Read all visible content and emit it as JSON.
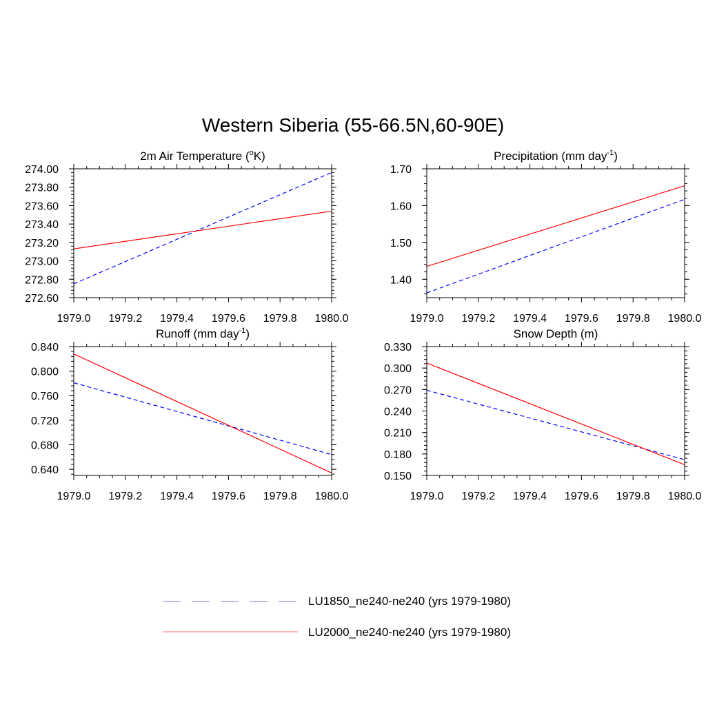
{
  "figure": {
    "title": "Western Siberia (55-66.5N,60-90E)"
  },
  "legend": {
    "placement": "bottom-center",
    "entries": [
      {
        "label": "LU1850_ne240-ne240 (yrs 1979-1980)",
        "color": "#0000ff",
        "style": "dashed"
      },
      {
        "label": "LU2000_ne240-ne240 (yrs 1979-1980)",
        "color": "#ff0000",
        "style": "solid"
      }
    ]
  },
  "chart_data": [
    {
      "type": "line",
      "title": "2m Air Temperature (°K)",
      "title_parts": {
        "base": "2m Air Temperature (",
        "sup": "o",
        "rest": "K)"
      },
      "xlabel": "",
      "ylabel": "",
      "xlim": [
        1979.0,
        1980.0
      ],
      "ylim": [
        272.6,
        274.0
      ],
      "xticks": [
        "1979.0",
        "1979.2",
        "1979.4",
        "1979.6",
        "1979.8",
        "1980.0"
      ],
      "yticks": [
        "272.60",
        "272.80",
        "273.00",
        "273.20",
        "273.40",
        "273.60",
        "273.80",
        "274.00"
      ],
      "series": [
        {
          "name": "LU1850_ne240-ne240 (yrs 1979-1980)",
          "x": [
            1979.0,
            1980.0
          ],
          "y": [
            272.75,
            273.96
          ],
          "color": "#0000ff",
          "style": "dashed"
        },
        {
          "name": "LU2000_ne240-ne240 (yrs 1979-1980)",
          "x": [
            1979.0,
            1980.0
          ],
          "y": [
            273.13,
            273.54
          ],
          "color": "#ff0000",
          "style": "solid"
        }
      ]
    },
    {
      "type": "line",
      "title": "Precipitation (mm day-1)",
      "title_parts": {
        "base": "Precipitation (mm day",
        "sup": "-1",
        "rest": ")"
      },
      "xlabel": "",
      "ylabel": "",
      "xlim": [
        1979.0,
        1980.0
      ],
      "ylim": [
        1.35,
        1.7
      ],
      "xticks": [
        "1979.0",
        "1979.2",
        "1979.4",
        "1979.6",
        "1979.8",
        "1980.0"
      ],
      "yticks": [
        "1.40",
        "1.50",
        "1.60",
        "1.70"
      ],
      "series": [
        {
          "name": "LU1850_ne240-ne240 (yrs 1979-1980)",
          "x": [
            1979.0,
            1980.0
          ],
          "y": [
            1.363,
            1.617
          ],
          "color": "#0000ff",
          "style": "dashed"
        },
        {
          "name": "LU2000_ne240-ne240 (yrs 1979-1980)",
          "x": [
            1979.0,
            1980.0
          ],
          "y": [
            1.435,
            1.654
          ],
          "color": "#ff0000",
          "style": "solid"
        }
      ]
    },
    {
      "type": "line",
      "title": "Runoff (mm day-1)",
      "title_parts": {
        "base": "Runoff (mm day",
        "sup": "-1",
        "rest": ")"
      },
      "xlabel": "",
      "ylabel": "",
      "xlim": [
        1979.0,
        1980.0
      ],
      "ylim": [
        0.63,
        0.84
      ],
      "xticks": [
        "1979.0",
        "1979.2",
        "1979.4",
        "1979.6",
        "1979.8",
        "1980.0"
      ],
      "yticks": [
        "0.640",
        "0.680",
        "0.720",
        "0.760",
        "0.800",
        "0.840"
      ],
      "series": [
        {
          "name": "LU1850_ne240-ne240 (yrs 1979-1980)",
          "x": [
            1979.0,
            1980.0
          ],
          "y": [
            0.781,
            0.664
          ],
          "color": "#0000ff",
          "style": "dashed"
        },
        {
          "name": "LU2000_ne240-ne240 (yrs 1979-1980)",
          "x": [
            1979.0,
            1980.0
          ],
          "y": [
            0.828,
            0.634
          ],
          "color": "#ff0000",
          "style": "solid"
        }
      ]
    },
    {
      "type": "line",
      "title": "Snow Depth (m)",
      "title_parts": {
        "base": "Snow Depth (m)",
        "sup": "",
        "rest": ""
      },
      "xlabel": "",
      "ylabel": "",
      "xlim": [
        1979.0,
        1980.0
      ],
      "ylim": [
        0.15,
        0.33
      ],
      "xticks": [
        "1979.0",
        "1979.2",
        "1979.4",
        "1979.6",
        "1979.8",
        "1980.0"
      ],
      "yticks": [
        "0.150",
        "0.180",
        "0.210",
        "0.240",
        "0.270",
        "0.300",
        "0.330"
      ],
      "series": [
        {
          "name": "LU1850_ne240-ne240 (yrs 1979-1980)",
          "x": [
            1979.0,
            1980.0
          ],
          "y": [
            0.269,
            0.172
          ],
          "color": "#0000ff",
          "style": "dashed"
        },
        {
          "name": "LU2000_ne240-ne240 (yrs 1979-1980)",
          "x": [
            1979.0,
            1980.0
          ],
          "y": [
            0.307,
            0.165
          ],
          "color": "#ff0000",
          "style": "solid"
        }
      ]
    }
  ]
}
